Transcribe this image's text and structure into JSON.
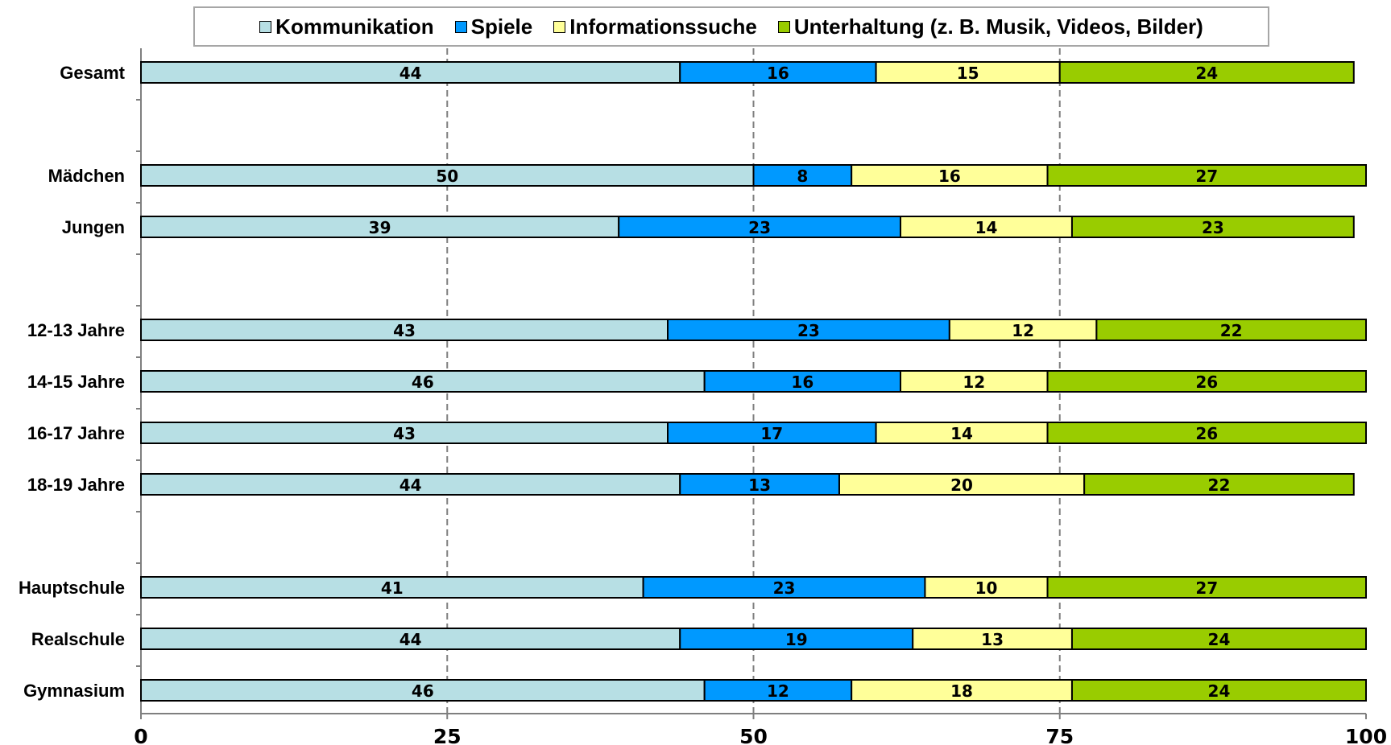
{
  "chart_data": {
    "type": "bar",
    "orientation": "horizontal",
    "stacked": true,
    "xlim": [
      0,
      100
    ],
    "xticks": [
      0,
      25,
      50,
      75,
      100
    ],
    "grid": "vertical dashed at 25, 50, 75",
    "legend_position": "top",
    "categories": [
      "Gesamt",
      "Mädchen",
      "Jungen",
      "12-13 Jahre",
      "14-15 Jahre",
      "16-17 Jahre",
      "18-19 Jahre",
      "Hauptschule",
      "Realschule",
      "Gymnasium"
    ],
    "series": [
      {
        "name": "Kommunikation",
        "color": "#b7dfe4",
        "values": [
          44,
          50,
          39,
          43,
          46,
          43,
          44,
          41,
          44,
          46
        ]
      },
      {
        "name": "Spiele",
        "color": "#0099ff",
        "values": [
          16,
          8,
          23,
          23,
          16,
          17,
          13,
          23,
          19,
          12
        ]
      },
      {
        "name": "Informationssuche",
        "color": "#ffff99",
        "values": [
          15,
          16,
          14,
          12,
          12,
          14,
          20,
          10,
          13,
          18
        ]
      },
      {
        "name": "Unterhaltung (z. B. Musik, Videos, Bilder)",
        "color": "#99cc00",
        "values": [
          24,
          27,
          23,
          22,
          26,
          26,
          22,
          27,
          24,
          24
        ]
      }
    ]
  }
}
